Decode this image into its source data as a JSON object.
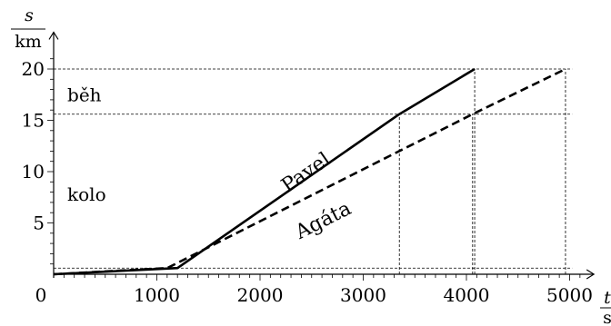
{
  "chart_data": {
    "type": "line",
    "title": "",
    "xlabel": {
      "quantity": "t",
      "unit": "s"
    },
    "ylabel": {
      "quantity": "s",
      "unit": "km"
    },
    "xlim": [
      0,
      5200
    ],
    "ylim": [
      0,
      22
    ],
    "x_ticks": [
      0,
      1000,
      2000,
      3000,
      4000,
      5000
    ],
    "y_ticks": [
      5,
      10,
      15,
      20
    ],
    "x_minor_step": 100,
    "y_minor_step": 1,
    "region_labels": [
      {
        "text": "běh",
        "at": [
          150,
          17.5
        ]
      },
      {
        "text": "kolo",
        "at": [
          150,
          7.8
        ]
      }
    ],
    "reference_lines": {
      "horizontal": [
        0.6,
        15.6,
        20
      ],
      "vertical": [
        3350,
        4060,
        4080,
        4960
      ]
    },
    "series": [
      {
        "name": "Pavel",
        "style": "solid",
        "label_at": [
          2480,
          9.4
        ],
        "points": [
          [
            0,
            0
          ],
          [
            1200,
            0.6
          ],
          [
            3350,
            15.6
          ],
          [
            4080,
            20
          ]
        ]
      },
      {
        "name": "Agáta",
        "style": "dashed",
        "label_at": [
          2640,
          4.7
        ],
        "points": [
          [
            0,
            0
          ],
          [
            1100,
            0.6
          ],
          [
            4060,
            15.6
          ],
          [
            4960,
            20
          ]
        ]
      }
    ]
  }
}
